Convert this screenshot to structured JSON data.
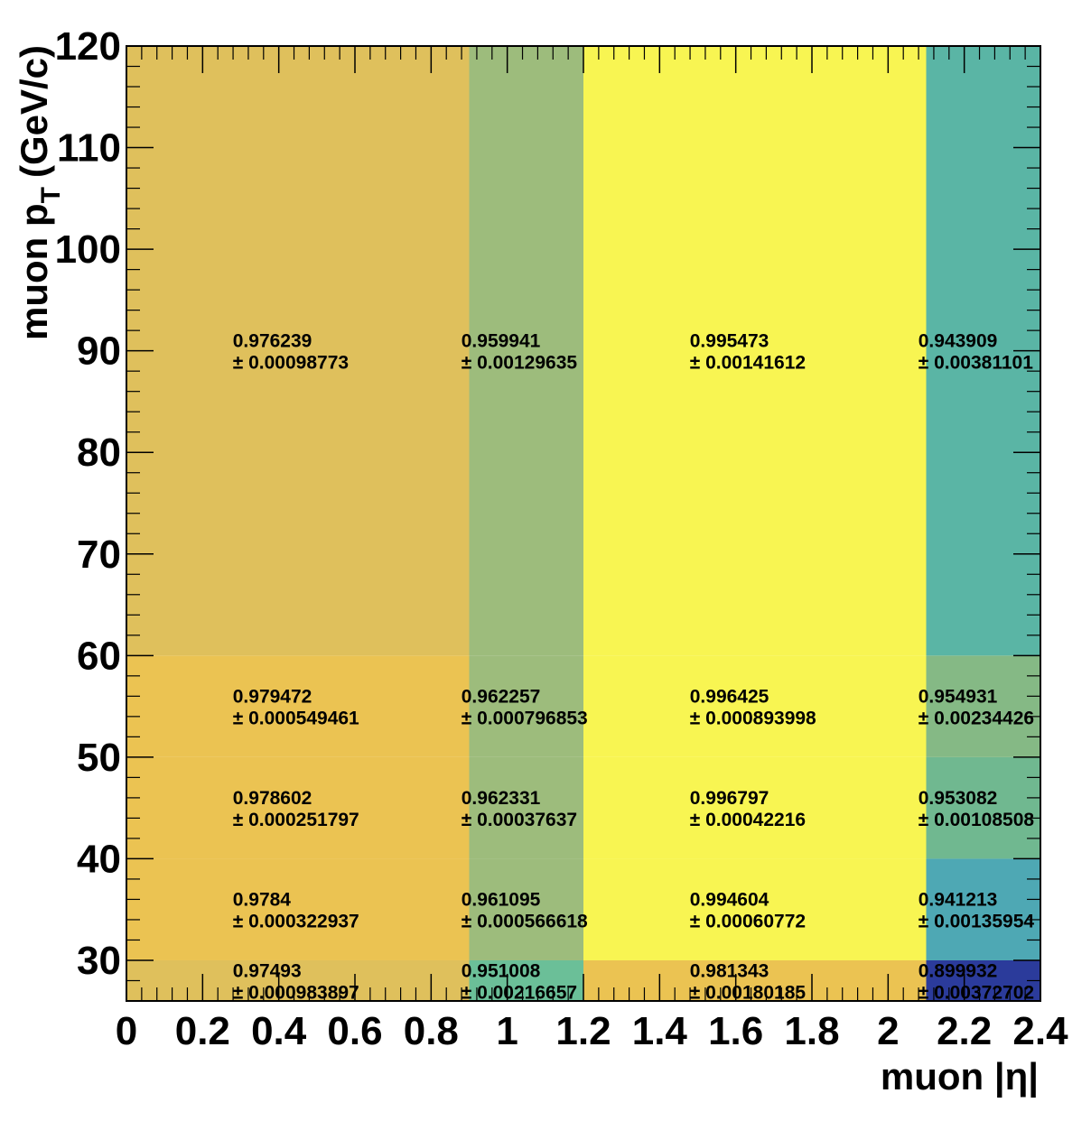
{
  "chart_data": {
    "type": "heatmap",
    "xlabel": "muon |η|",
    "ylabel_main": "muon p",
    "ylabel_sub": "T",
    "ylabel_unit": "(GeV/c)",
    "xlim": [
      0,
      2.4
    ],
    "ylim": [
      26,
      120
    ],
    "x_ticks": [
      "0",
      "0.2",
      "0.4",
      "0.6",
      "0.8",
      "1",
      "1.2",
      "1.4",
      "1.6",
      "1.8",
      "2",
      "2.2",
      "2.4"
    ],
    "x_tick_values": [
      0,
      0.2,
      0.4,
      0.6,
      0.8,
      1,
      1.2,
      1.4,
      1.6,
      1.8,
      2,
      2.2,
      2.4
    ],
    "y_ticks": [
      "30",
      "40",
      "50",
      "60",
      "70",
      "80",
      "90",
      "100",
      "110",
      "120"
    ],
    "y_tick_values": [
      30,
      40,
      50,
      60,
      70,
      80,
      90,
      100,
      110,
      120
    ],
    "x_edges": [
      0,
      0.9,
      1.2,
      2.1,
      2.4
    ],
    "y_edges": [
      26,
      30,
      40,
      50,
      60,
      120
    ],
    "cells": [
      {
        "xi": 0,
        "yi": 0,
        "value": "0.97493",
        "error": "0.000983897",
        "color": "#dfc05c"
      },
      {
        "xi": 1,
        "yi": 0,
        "value": "0.951008",
        "error": "0.00216657",
        "color": "#6bbf98"
      },
      {
        "xi": 2,
        "yi": 0,
        "value": "0.981343",
        "error": "0.00180185",
        "color": "#ebc352"
      },
      {
        "xi": 3,
        "yi": 0,
        "value": "0.899932",
        "error": "0.00372702",
        "color": "#2b3b9b"
      },
      {
        "xi": 0,
        "yi": 1,
        "value": "0.9784",
        "error": "0.000322937",
        "color": "#ebc352"
      },
      {
        "xi": 1,
        "yi": 1,
        "value": "0.961095",
        "error": "0.000566618",
        "color": "#9dbc7c"
      },
      {
        "xi": 2,
        "yi": 1,
        "value": "0.994604",
        "error": "0.00060772",
        "color": "#f8f552"
      },
      {
        "xi": 3,
        "yi": 1,
        "value": "0.941213",
        "error": "0.00135954",
        "color": "#4ea8b4"
      },
      {
        "xi": 0,
        "yi": 2,
        "value": "0.978602",
        "error": "0.000251797",
        "color": "#ebc352"
      },
      {
        "xi": 1,
        "yi": 2,
        "value": "0.962331",
        "error": "0.00037637",
        "color": "#9dbc7c"
      },
      {
        "xi": 2,
        "yi": 2,
        "value": "0.996797",
        "error": "0.00042216",
        "color": "#f8f552"
      },
      {
        "xi": 3,
        "yi": 2,
        "value": "0.953082",
        "error": "0.00108508",
        "color": "#70b890"
      },
      {
        "xi": 0,
        "yi": 3,
        "value": "0.979472",
        "error": "0.000549461",
        "color": "#ebc352"
      },
      {
        "xi": 1,
        "yi": 3,
        "value": "0.962257",
        "error": "0.000796853",
        "color": "#9dbc7c"
      },
      {
        "xi": 2,
        "yi": 3,
        "value": "0.996425",
        "error": "0.000893998",
        "color": "#f8f552"
      },
      {
        "xi": 3,
        "yi": 3,
        "value": "0.954931",
        "error": "0.00234426",
        "color": "#85b985"
      },
      {
        "xi": 0,
        "yi": 4,
        "value": "0.976239",
        "error": "0.00098773",
        "color": "#dfc05c"
      },
      {
        "xi": 1,
        "yi": 4,
        "value": "0.959941",
        "error": "0.00129635",
        "color": "#9dbc7c"
      },
      {
        "xi": 2,
        "yi": 4,
        "value": "0.995473",
        "error": "0.00141612",
        "color": "#f8f552"
      },
      {
        "xi": 3,
        "yi": 4,
        "value": "0.943909",
        "error": "0.00381101",
        "color": "#5ab5a5"
      }
    ],
    "plus_minus": "±"
  }
}
